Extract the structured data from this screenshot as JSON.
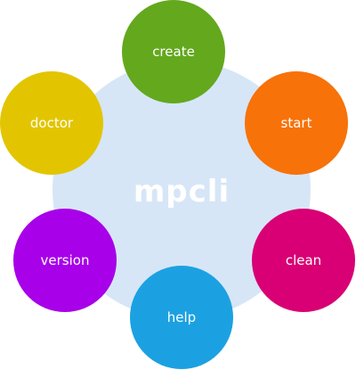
{
  "hub": {
    "label": "mpcli",
    "color": "#d6e6f7"
  },
  "nodes": [
    {
      "id": "create",
      "label": "create",
      "color": "#64a81e"
    },
    {
      "id": "start",
      "label": "start",
      "color": "#f77209"
    },
    {
      "id": "clean",
      "label": "clean",
      "color": "#d80074"
    },
    {
      "id": "help",
      "label": "help",
      "color": "#1ba1e2"
    },
    {
      "id": "version",
      "label": "version",
      "color": "#a800e9"
    },
    {
      "id": "doctor",
      "label": "doctor",
      "color": "#e2c500"
    }
  ]
}
